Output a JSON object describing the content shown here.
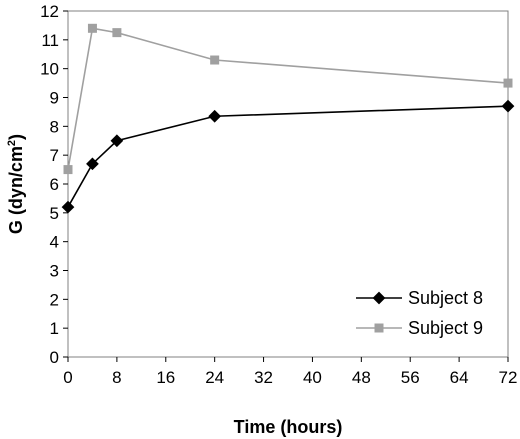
{
  "chart_data": {
    "type": "line",
    "xlabel": "Time (hours)",
    "ylabel_main": "G (dyn/cm",
    "ylabel_sup": "2",
    "ylabel_close": ")",
    "xlim": [
      0,
      72
    ],
    "ylim": [
      0,
      12
    ],
    "xticks": [
      0,
      8,
      16,
      24,
      32,
      40,
      48,
      56,
      64,
      72
    ],
    "yticks": [
      0,
      1,
      2,
      3,
      4,
      5,
      6,
      7,
      8,
      9,
      10,
      11,
      12
    ],
    "grid": false,
    "legend_position": "bottom-right",
    "series": [
      {
        "name": "Subject 8",
        "color": "#000000",
        "marker": "diamond",
        "x": [
          0,
          4,
          8,
          24,
          72
        ],
        "y": [
          5.2,
          6.7,
          7.5,
          8.35,
          8.7
        ]
      },
      {
        "name": "Subject 9",
        "color": "#a0a0a0",
        "marker": "square",
        "x": [
          0,
          4,
          8,
          24,
          72
        ],
        "y": [
          6.5,
          11.4,
          11.25,
          10.3,
          9.5
        ]
      }
    ]
  }
}
